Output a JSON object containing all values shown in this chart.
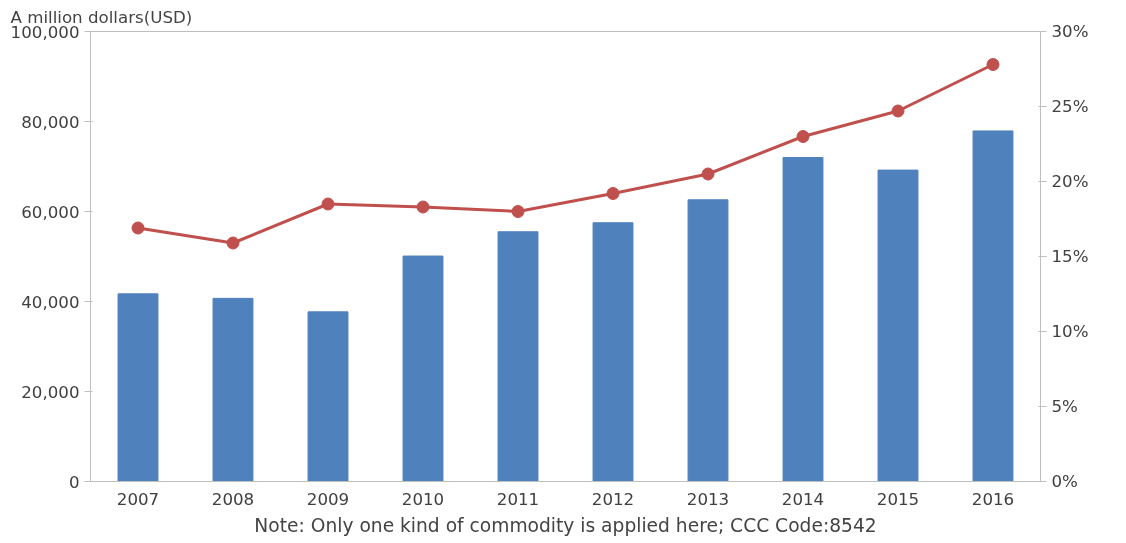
{
  "chart_data": {
    "type": "bar",
    "ylabel": "A million dollars(USD)",
    "annotations": [
      "Note: Only one kind of commodity is applied here; CCC Code:8542"
    ],
    "categories": [
      "2007",
      "2008",
      "2009",
      "2010",
      "2011",
      "2012",
      "2013",
      "2014",
      "2015",
      "2016"
    ],
    "series": [
      {
        "color": "#4f81bd",
        "values": [
          41700,
          40700,
          37700,
          50100,
          55500,
          57500,
          62600,
          72000,
          69200,
          77900
        ]
      },
      {
        "type": "line",
        "axis": "y2",
        "color": "#c0504d",
        "marker": "circle",
        "values": [
          16.9,
          15.9,
          18.5,
          18.3,
          18.0,
          19.2,
          20.5,
          23.0,
          24.7,
          27.8
        ]
      }
    ],
    "ylim": [
      0,
      100000
    ],
    "yticks": [
      0,
      {
        "value": 20000,
        "label": "20,000"
      },
      {
        "value": 40000,
        "label": "40,000"
      },
      {
        "value": 60000,
        "label": "60,000"
      },
      {
        "value": 80000,
        "label": "80,000"
      },
      {
        "value": 100000,
        "label": "100,000"
      }
    ],
    "y2lim": [
      0,
      30
    ],
    "y2ticks": [
      {
        "value": 0,
        "label": "0%"
      },
      {
        "value": 5,
        "label": "5%"
      },
      {
        "value": 10,
        "label": "10%"
      },
      {
        "value": 15,
        "label": "15%"
      },
      {
        "value": 20,
        "label": "20%"
      },
      {
        "value": 25,
        "label": "25%"
      },
      {
        "value": 30,
        "label": "30%"
      }
    ],
    "grid": false
  }
}
